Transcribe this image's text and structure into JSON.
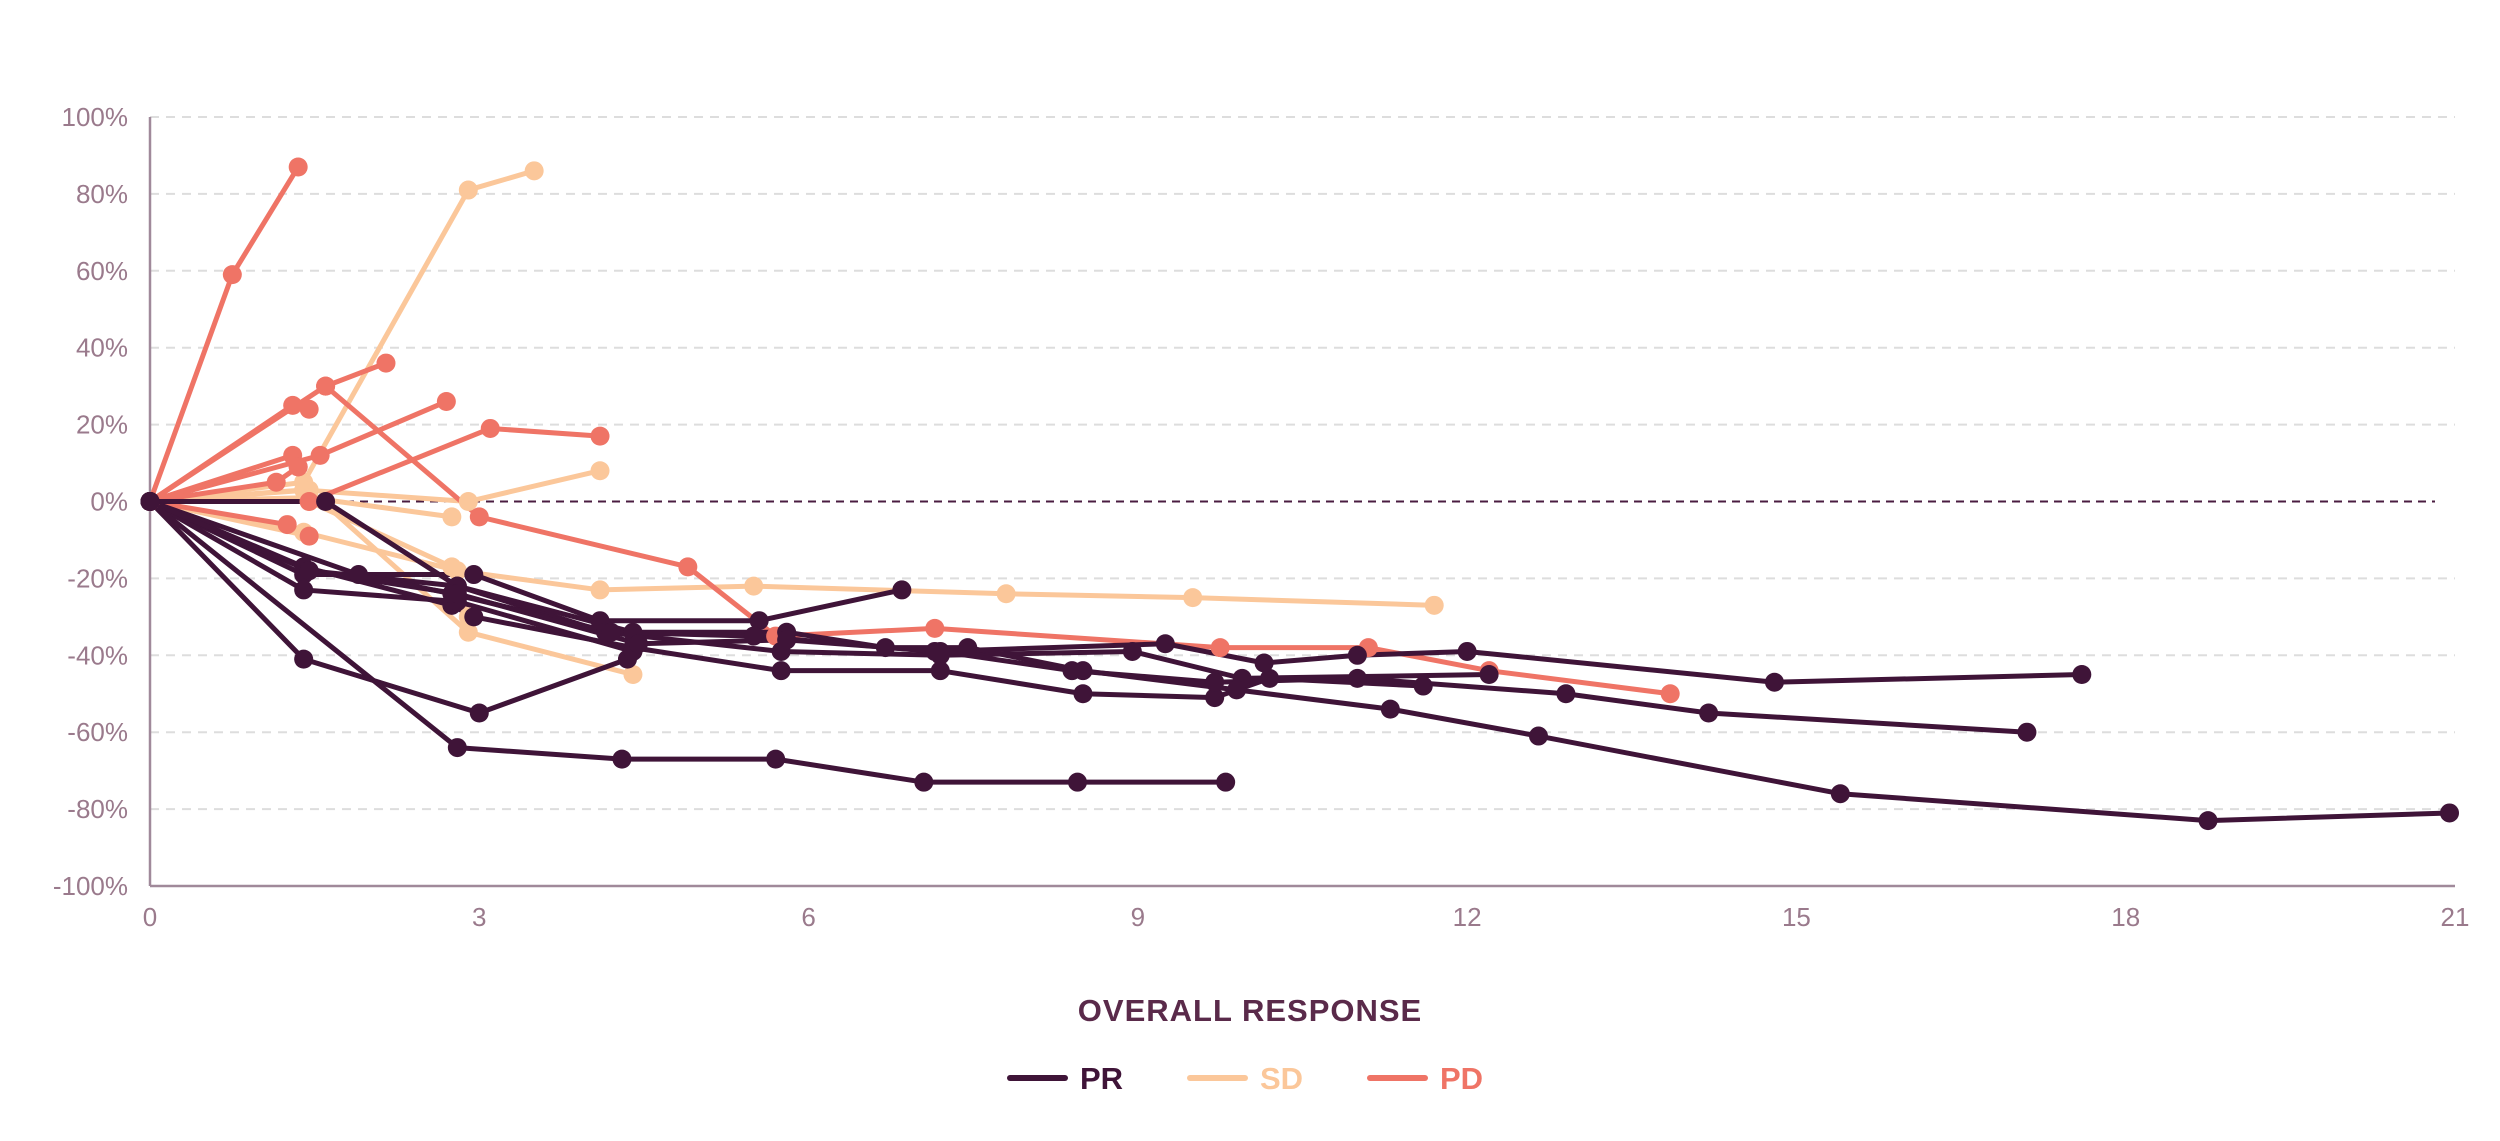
{
  "chart_data": {
    "type": "line",
    "title": "",
    "xlabel": "OVERALL RESPONSE",
    "ylabel": "",
    "xlim": [
      0,
      21
    ],
    "ylim": [
      -100,
      100
    ],
    "x_ticks": [
      0,
      3,
      6,
      9,
      12,
      15,
      18,
      21
    ],
    "y_ticks": [
      100,
      80,
      60,
      40,
      20,
      0,
      -20,
      -40,
      -60,
      -80,
      -100
    ],
    "y_tick_format": "percent",
    "grid": "horizontal-dashed",
    "reference_line": 0,
    "legend_position": "bottom-center",
    "groups": [
      {
        "name": "PR",
        "color": "#3f1438"
      },
      {
        "name": "SD",
        "color": "#fbc79a"
      },
      {
        "name": "PD",
        "color": "#ef7466"
      }
    ],
    "series": [
      {
        "group": "SD",
        "points": [
          [
            0,
            0
          ],
          [
            1.4,
            -8
          ],
          [
            2.8,
            -18
          ],
          [
            4.1,
            -23
          ],
          [
            5.5,
            -22
          ],
          [
            7.8,
            -24
          ],
          [
            9.5,
            -25
          ],
          [
            11.7,
            -27
          ]
        ]
      },
      {
        "group": "SD",
        "points": [
          [
            0,
            0
          ],
          [
            1.45,
            3
          ],
          [
            2.9,
            -34
          ],
          [
            4.4,
            -45
          ]
        ]
      },
      {
        "group": "SD",
        "points": [
          [
            0,
            0
          ],
          [
            1.4,
            5
          ],
          [
            2.9,
            81
          ],
          [
            3.5,
            86
          ]
        ]
      },
      {
        "group": "SD",
        "points": [
          [
            0,
            0
          ],
          [
            1.4,
            3
          ],
          [
            2.9,
            0
          ],
          [
            4.1,
            8
          ]
        ]
      },
      {
        "group": "SD",
        "points": [
          [
            0,
            0
          ],
          [
            1.45,
            -9
          ]
        ]
      },
      {
        "group": "SD",
        "points": [
          [
            0,
            0
          ],
          [
            1.45,
            0
          ],
          [
            2.75,
            -17
          ],
          [
            2.9,
            -30
          ]
        ]
      },
      {
        "group": "SD",
        "points": [
          [
            0,
            0
          ],
          [
            1.45,
            1
          ],
          [
            2.75,
            -4
          ]
        ]
      },
      {
        "group": "PD",
        "points": [
          [
            0,
            0
          ],
          [
            0.75,
            59
          ],
          [
            1.35,
            87
          ]
        ]
      },
      {
        "group": "PD",
        "points": [
          [
            0,
            0
          ],
          [
            1.3,
            25
          ],
          [
            1.45,
            24
          ]
        ]
      },
      {
        "group": "PD",
        "points": [
          [
            0,
            0
          ],
          [
            1.6,
            30
          ],
          [
            2.15,
            36
          ]
        ]
      },
      {
        "group": "PD",
        "points": [
          [
            0,
            0
          ],
          [
            1.55,
            12
          ],
          [
            2.7,
            26
          ]
        ]
      },
      {
        "group": "PD",
        "points": [
          [
            0,
            0
          ],
          [
            1.25,
            -6
          ],
          [
            1.45,
            -9
          ]
        ]
      },
      {
        "group": "PD",
        "points": [
          [
            0,
            0
          ],
          [
            1.3,
            12
          ],
          [
            1.35,
            9
          ]
        ]
      },
      {
        "group": "PD",
        "points": [
          [
            0,
            0
          ],
          [
            1.15,
            5
          ],
          [
            1.35,
            9
          ]
        ]
      },
      {
        "group": "PD",
        "points": [
          [
            1.45,
            0
          ],
          [
            3.1,
            19
          ],
          [
            4.1,
            17
          ]
        ]
      },
      {
        "group": "PD",
        "points": [
          [
            1.6,
            30
          ],
          [
            3.0,
            -4
          ],
          [
            4.9,
            -17
          ],
          [
            5.7,
            -35
          ],
          [
            7.15,
            -33
          ],
          [
            9.75,
            -38
          ],
          [
            11.1,
            -38
          ],
          [
            12.2,
            -44
          ],
          [
            13.85,
            -50
          ]
        ]
      },
      {
        "group": "PR",
        "points": [
          [
            0,
            0
          ],
          [
            1.4,
            -41
          ],
          [
            3.0,
            -55
          ],
          [
            4.35,
            -41
          ]
        ]
      },
      {
        "group": "PR",
        "points": [
          [
            0,
            0
          ],
          [
            1.4,
            -17
          ],
          [
            2.75,
            -27
          ],
          [
            2.95,
            -30
          ],
          [
            4.4,
            -38
          ],
          [
            5.75,
            -44
          ],
          [
            7.2,
            -44
          ],
          [
            8.5,
            -50
          ],
          [
            9.7,
            -51
          ],
          [
            10.2,
            -46
          ],
          [
            11.6,
            -48
          ]
        ]
      },
      {
        "group": "PR",
        "points": [
          [
            0,
            0
          ],
          [
            1.4,
            -19
          ],
          [
            2.95,
            -19
          ],
          [
            4.1,
            -31
          ],
          [
            5.55,
            -31
          ],
          [
            6.85,
            -23
          ]
        ]
      },
      {
        "group": "PR",
        "points": [
          [
            0,
            0
          ],
          [
            1.4,
            -23
          ],
          [
            2.8,
            -26
          ],
          [
            4.4,
            -39
          ]
        ]
      },
      {
        "group": "PR",
        "points": [
          [
            0,
            0
          ],
          [
            1.45,
            -18
          ],
          [
            2.8,
            -22
          ],
          [
            4.15,
            -34
          ],
          [
            5.75,
            -39
          ],
          [
            7.2,
            -40
          ],
          [
            8.95,
            -39
          ],
          [
            9.95,
            -46
          ],
          [
            12.2,
            -45
          ]
        ]
      },
      {
        "group": "PR",
        "points": [
          [
            0,
            0
          ],
          [
            1.6,
            0
          ],
          [
            2.8,
            -22
          ],
          [
            4.4,
            -34
          ],
          [
            5.8,
            -34
          ],
          [
            6.7,
            -38
          ],
          [
            7.45,
            -38
          ],
          [
            8.5,
            -44
          ],
          [
            9.9,
            -49
          ],
          [
            11.3,
            -54
          ],
          [
            12.65,
            -61
          ],
          [
            15.4,
            -76
          ],
          [
            18.75,
            -83
          ],
          [
            20.95,
            -81
          ]
        ]
      },
      {
        "group": "PR",
        "points": [
          [
            0,
            0
          ],
          [
            1.9,
            -19
          ],
          [
            2.75,
            -24
          ],
          [
            4.2,
            -34
          ],
          [
            5.5,
            -35
          ],
          [
            7.15,
            -39
          ],
          [
            9.25,
            -37
          ],
          [
            10.15,
            -42
          ],
          [
            11.0,
            -40
          ],
          [
            12.0,
            -39
          ],
          [
            14.8,
            -47
          ],
          [
            17.6,
            -45
          ]
        ]
      },
      {
        "group": "PR",
        "points": [
          [
            0,
            0
          ],
          [
            1.45,
            -18
          ],
          [
            2.8,
            -24
          ],
          [
            4.45,
            -37
          ],
          [
            5.8,
            -36
          ],
          [
            7.2,
            -39
          ],
          [
            8.4,
            -44
          ],
          [
            9.7,
            -47
          ],
          [
            11.0,
            -46
          ],
          [
            12.9,
            -50
          ],
          [
            14.2,
            -55
          ],
          [
            17.1,
            -60
          ]
        ]
      },
      {
        "group": "PR",
        "points": [
          [
            0,
            0
          ],
          [
            2.8,
            -64
          ],
          [
            4.3,
            -67
          ],
          [
            5.7,
            -67
          ],
          [
            7.05,
            -73
          ],
          [
            8.45,
            -73
          ],
          [
            9.8,
            -73
          ]
        ]
      }
    ]
  }
}
